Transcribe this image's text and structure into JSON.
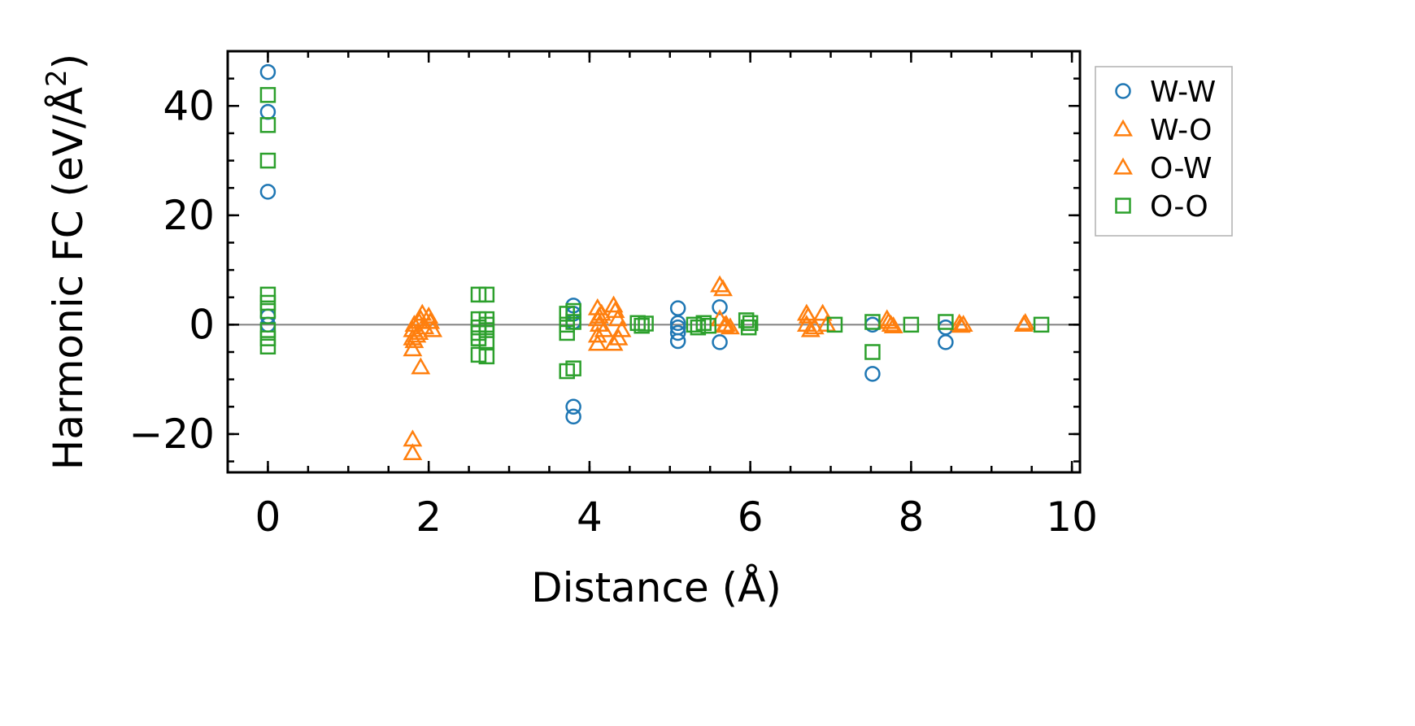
{
  "chart_data": {
    "type": "scatter",
    "title": "",
    "xlabel": "Distance (Å)",
    "ylabel_main": "Harmonic FC (eV/Å",
    "ylabel_sup": "2",
    "ylabel_close": ")",
    "xlim": [
      -0.5,
      10.1
    ],
    "ylim": [
      -27,
      50
    ],
    "xticks": [
      0,
      2,
      4,
      6,
      8,
      10
    ],
    "xtick_labels": [
      "0",
      "2",
      "4",
      "6",
      "8",
      "10"
    ],
    "yticks": [
      -20,
      0,
      20,
      40
    ],
    "ytick_labels": [
      "−20",
      "0",
      "20",
      "40"
    ],
    "x_minor_step": 0.5,
    "y_minor_step": 5,
    "zero_line": true,
    "grid": false,
    "legend_position": "outside-right-top",
    "series": [
      {
        "name": "W-W",
        "marker": "circle",
        "color": "#1f77b4",
        "points": [
          [
            0,
            46.2
          ],
          [
            0,
            38.9
          ],
          [
            0,
            24.3
          ],
          [
            0,
            1.5
          ],
          [
            0,
            0
          ],
          [
            3.8,
            3.5
          ],
          [
            3.8,
            2.0
          ],
          [
            3.8,
            0.5
          ],
          [
            3.8,
            -15.0
          ],
          [
            3.8,
            -16.8
          ],
          [
            5.1,
            3.0
          ],
          [
            5.1,
            0.3
          ],
          [
            5.1,
            -0.5
          ],
          [
            5.1,
            -1.5
          ],
          [
            5.1,
            -3.0
          ],
          [
            5.62,
            3.2
          ],
          [
            5.62,
            -3.2
          ],
          [
            7.52,
            -9.0
          ],
          [
            7.52,
            0
          ],
          [
            8.43,
            -0.5
          ],
          [
            8.43,
            -3.2
          ]
        ]
      },
      {
        "name": "W-O",
        "marker": "triangle",
        "color": "#ff7f0e",
        "points": [
          [
            1.8,
            -21.0
          ],
          [
            1.8,
            -23.5
          ],
          [
            1.8,
            -4.5
          ],
          [
            1.8,
            -2.5
          ],
          [
            1.8,
            -1.0
          ],
          [
            1.88,
            0.5
          ],
          [
            1.88,
            -1.5
          ],
          [
            1.9,
            -7.8
          ],
          [
            1.92,
            2.0
          ],
          [
            1.95,
            -0.5
          ],
          [
            2.0,
            1.5
          ],
          [
            2.05,
            -1.0
          ],
          [
            4.1,
            3.0
          ],
          [
            4.1,
            1.0
          ],
          [
            4.1,
            -3.5
          ],
          [
            4.12,
            0
          ],
          [
            4.15,
            2.0
          ],
          [
            4.3,
            3.5
          ],
          [
            4.3,
            -3.5
          ],
          [
            4.35,
            1.0
          ],
          [
            4.4,
            -1.0
          ],
          [
            5.62,
            7.2
          ],
          [
            5.62,
            1.0
          ],
          [
            5.7,
            0
          ],
          [
            5.75,
            -0.5
          ],
          [
            6.7,
            2.0
          ],
          [
            6.7,
            0
          ],
          [
            6.75,
            -1.0
          ],
          [
            6.9,
            2.0
          ],
          [
            6.95,
            0
          ],
          [
            7.7,
            1.0
          ],
          [
            7.75,
            0
          ],
          [
            8.6,
            0.2
          ],
          [
            8.65,
            0
          ],
          [
            9.4,
            0
          ]
        ]
      },
      {
        "name": "O-W",
        "marker": "triangle",
        "color": "#ff7f0e",
        "points": [
          [
            1.82,
            -3.0
          ],
          [
            1.82,
            0
          ],
          [
            1.85,
            -2.0
          ],
          [
            1.9,
            1.0
          ],
          [
            2.02,
            0.5
          ],
          [
            4.1,
            -2.0
          ],
          [
            4.12,
            1.5
          ],
          [
            4.18,
            -1.0
          ],
          [
            4.32,
            2.5
          ],
          [
            4.36,
            -2.5
          ],
          [
            5.66,
            6.5
          ],
          [
            5.68,
            -0.2
          ],
          [
            6.72,
            1.5
          ],
          [
            6.8,
            -0.5
          ],
          [
            7.72,
            0.5
          ],
          [
            7.78,
            -0.3
          ],
          [
            8.62,
            -0.2
          ],
          [
            9.42,
            0.3
          ]
        ]
      },
      {
        "name": "O-O",
        "marker": "square",
        "color": "#2ca02c",
        "points": [
          [
            0,
            42.0
          ],
          [
            0,
            36.5
          ],
          [
            0,
            30.0
          ],
          [
            0,
            5.5
          ],
          [
            0,
            4.0
          ],
          [
            0,
            2.5
          ],
          [
            0,
            -1.0
          ],
          [
            0,
            -2.5
          ],
          [
            0,
            -4.0
          ],
          [
            2.62,
            5.5
          ],
          [
            2.62,
            1.0
          ],
          [
            2.62,
            -0.5
          ],
          [
            2.62,
            -1.5
          ],
          [
            2.62,
            -2.5
          ],
          [
            2.62,
            -5.5
          ],
          [
            2.72,
            5.5
          ],
          [
            2.72,
            1.0
          ],
          [
            2.72,
            0
          ],
          [
            2.72,
            -1.0
          ],
          [
            2.72,
            -3.0
          ],
          [
            2.72,
            -5.8
          ],
          [
            3.72,
            2.0
          ],
          [
            3.72,
            0
          ],
          [
            3.72,
            -1.5
          ],
          [
            3.72,
            -8.5
          ],
          [
            3.8,
            2.5
          ],
          [
            3.8,
            0.5
          ],
          [
            3.8,
            -8.0
          ],
          [
            4.6,
            0.3
          ],
          [
            4.65,
            -0.2
          ],
          [
            4.7,
            0.2
          ],
          [
            5.3,
            0
          ],
          [
            5.35,
            -0.5
          ],
          [
            5.42,
            0.3
          ],
          [
            5.48,
            -0.2
          ],
          [
            5.95,
            0.8
          ],
          [
            5.98,
            -0.5
          ],
          [
            6.0,
            0.3
          ],
          [
            7.05,
            0
          ],
          [
            7.52,
            0.5
          ],
          [
            7.52,
            -5.0
          ],
          [
            8.0,
            0
          ],
          [
            8.43,
            0.5
          ],
          [
            9.62,
            0
          ]
        ]
      }
    ]
  }
}
